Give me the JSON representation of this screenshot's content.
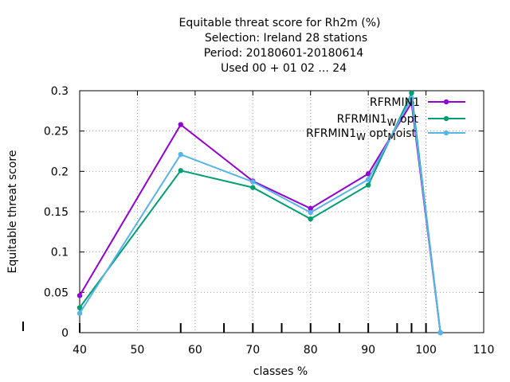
{
  "chart_data": {
    "type": "line",
    "title_lines": [
      "Equitable threat score  for Rh2m (%)",
      "Selection: Ireland      28 stations",
      "Period: 20180601-20180614",
      "Used  00 + 01 02 ... 24"
    ],
    "xlabel": "classes %",
    "ylabel": "Equitable threat score",
    "xlim": [
      40,
      110
    ],
    "ylim": [
      0,
      0.3
    ],
    "xticks": [
      "40",
      "50",
      "60",
      "70",
      "80",
      "90",
      "100",
      "110"
    ],
    "yticks": [
      "0",
      "0.05",
      "0.1",
      "0.15",
      "0.2",
      "0.25",
      "0.3"
    ],
    "grid": true,
    "legend_position": "top-right",
    "series": [
      {
        "name": "RFRMIN1",
        "name_parts": [
          [
            "RFRMIN1",
            ""
          ]
        ],
        "color": "#9400d3",
        "x": [
          40,
          57.5,
          70,
          80,
          90,
          97.5,
          102.5
        ],
        "y": [
          0.046,
          0.258,
          0.188,
          0.154,
          0.197,
          0.285,
          0.0
        ]
      },
      {
        "name": "RFRMIN1 W opt",
        "name_parts": [
          [
            "RFRMIN1",
            ""
          ],
          [
            "W",
            "sub"
          ],
          [
            " opt",
            ""
          ]
        ],
        "color": "#009e73",
        "x": [
          40,
          57.5,
          70,
          80,
          90,
          97.5,
          102.5
        ],
        "y": [
          0.031,
          0.201,
          0.18,
          0.141,
          0.183,
          0.297,
          0.0
        ]
      },
      {
        "name": "RFRMIN1 W opt M oist",
        "name_parts": [
          [
            "RFRMIN1",
            ""
          ],
          [
            "W",
            "sub"
          ],
          [
            " opt",
            ""
          ],
          [
            "M",
            "sub"
          ],
          [
            "oist",
            ""
          ]
        ],
        "color": "#56b4e9",
        "x": [
          40,
          57.5,
          70,
          80,
          90,
          97.5,
          102.5
        ],
        "y": [
          0.024,
          0.221,
          0.187,
          0.149,
          0.19,
          0.291,
          0.0
        ]
      }
    ],
    "extra_ticks_x": [
      40,
      57.5,
      65,
      70,
      75,
      80,
      85,
      90,
      95,
      97.5,
      100
    ]
  }
}
